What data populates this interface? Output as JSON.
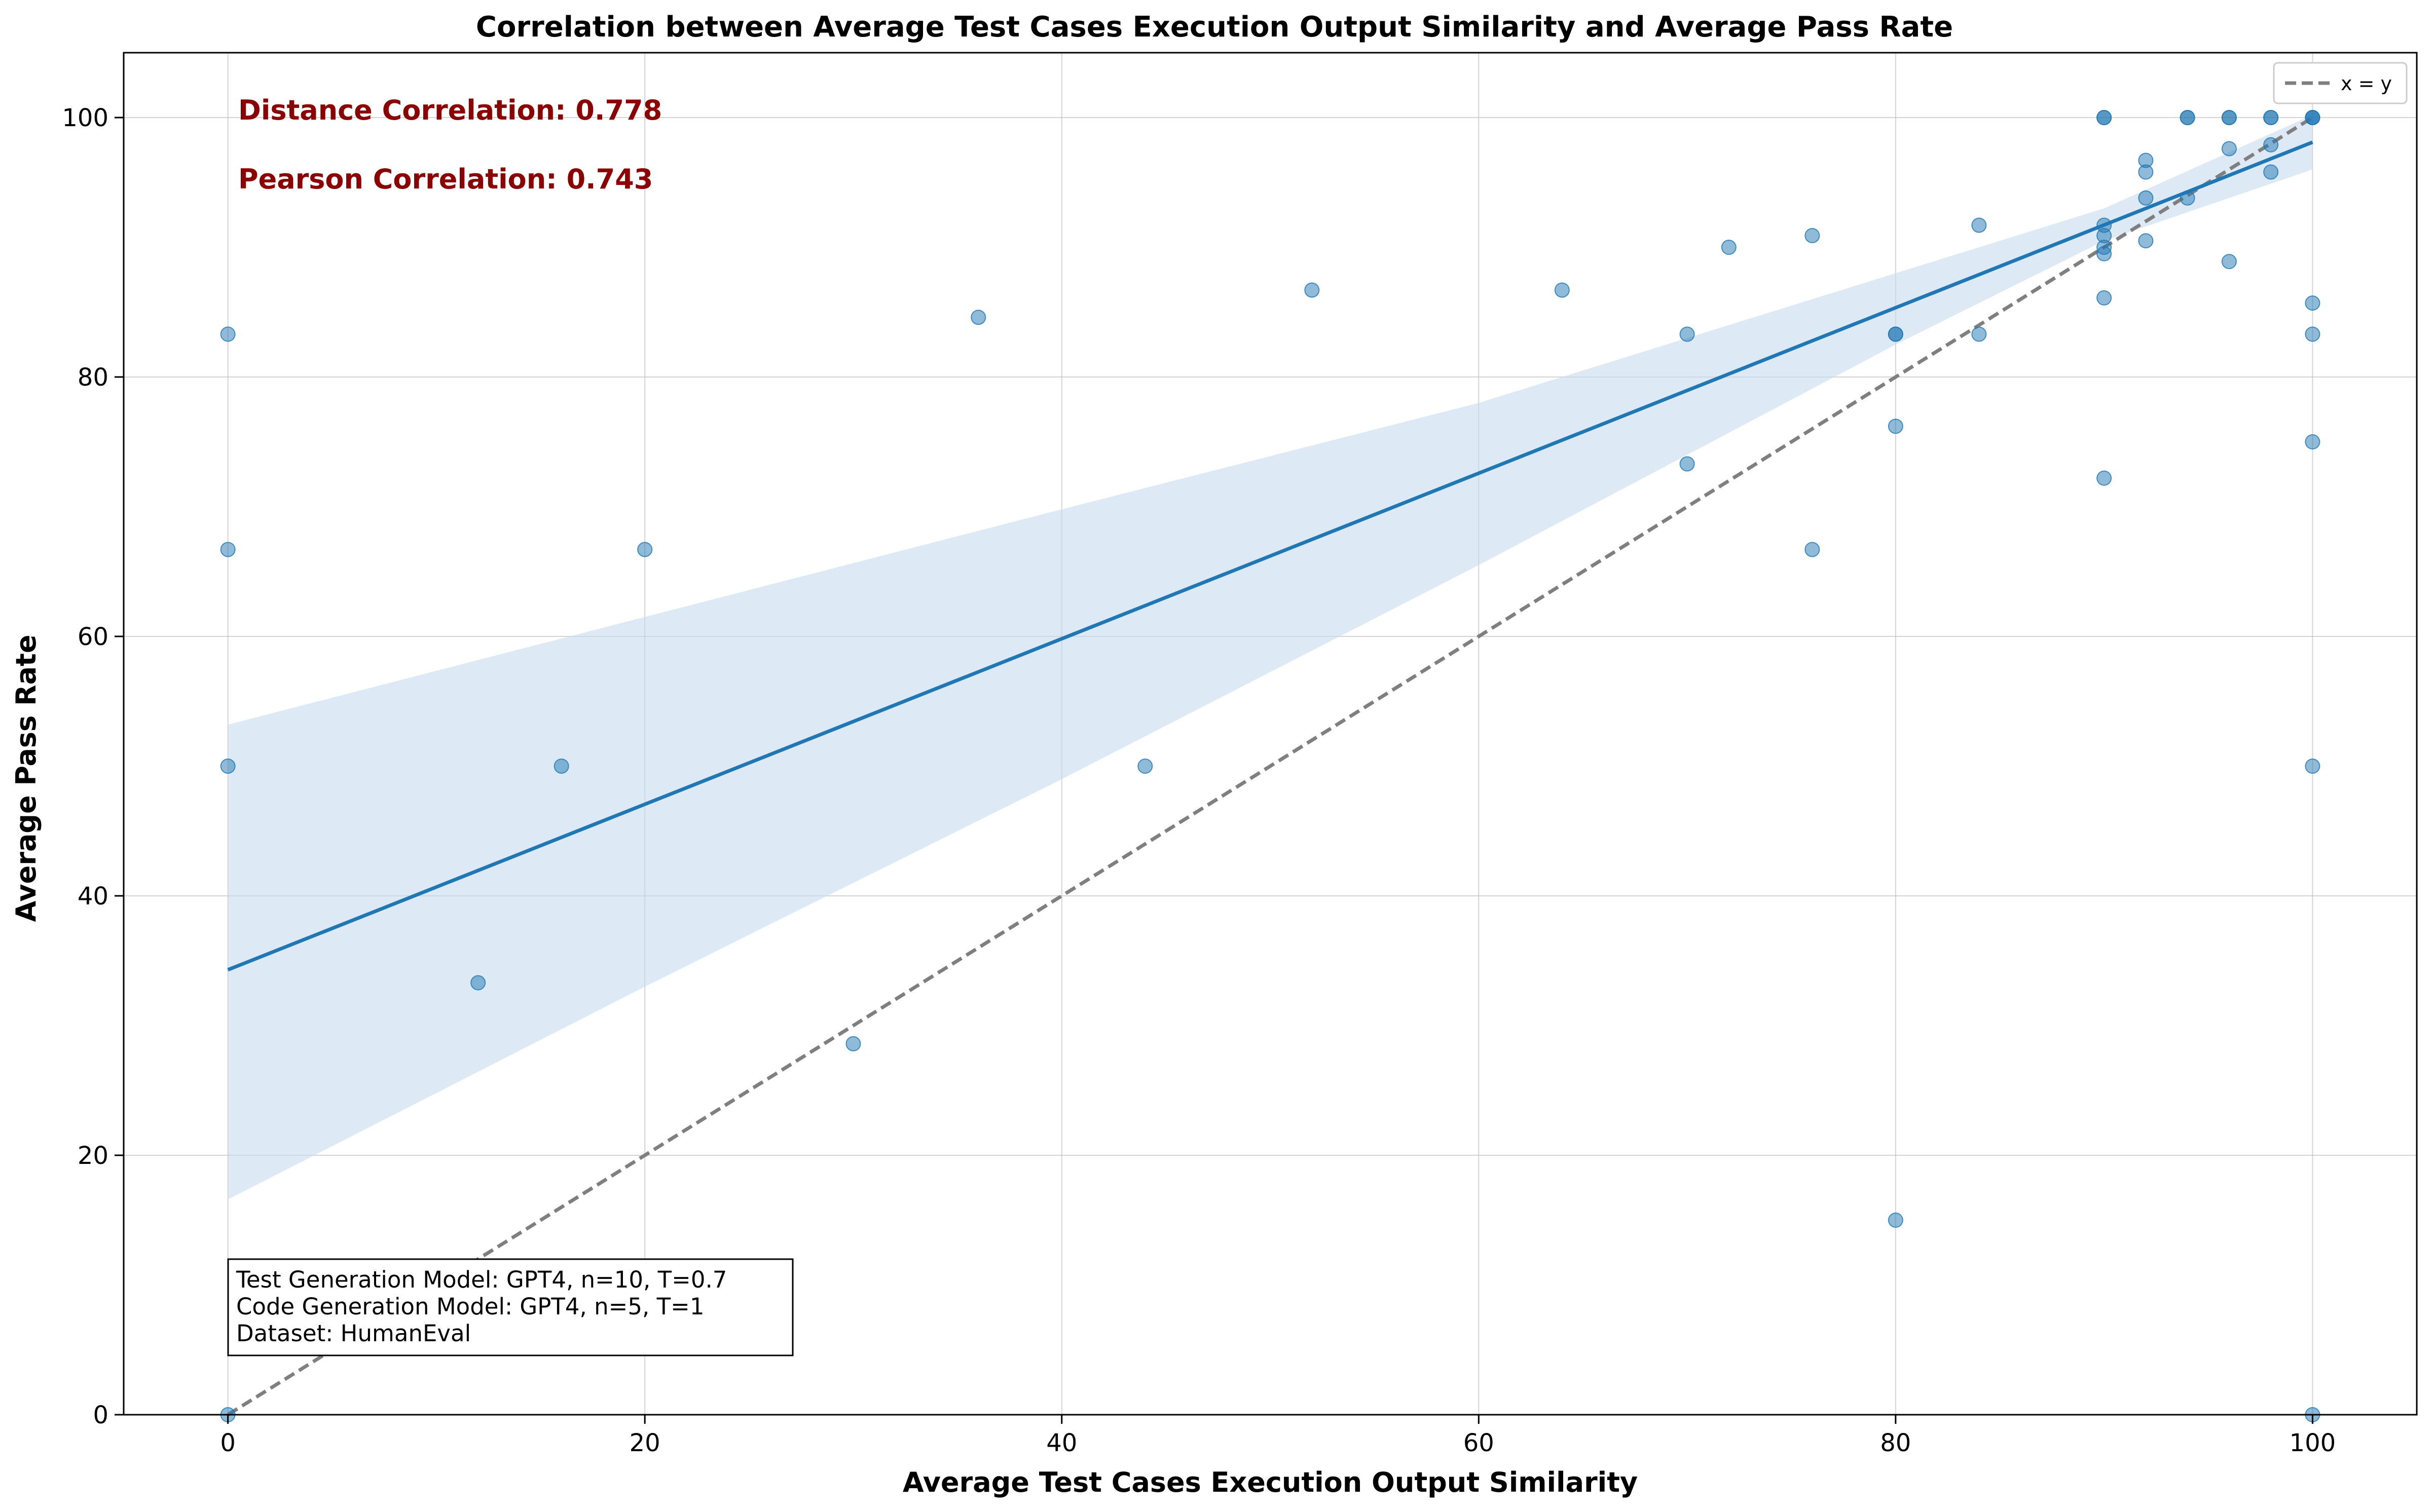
{
  "chart_data": {
    "type": "scatter",
    "title": "Correlation between Average Test Cases Execution Output Similarity and Average Pass Rate",
    "xlabel": "Average Test Cases Execution Output Similarity",
    "ylabel": "Average Pass Rate",
    "xlim": [
      -5,
      105
    ],
    "ylim": [
      0,
      105
    ],
    "xticks": [
      0,
      20,
      40,
      60,
      80,
      100
    ],
    "yticks": [
      0,
      20,
      40,
      60,
      80,
      100
    ],
    "grid": true,
    "legend": {
      "position": "top-right",
      "entries": [
        {
          "label": "x = y",
          "style": "dashed",
          "color": "#7f7f7f"
        }
      ]
    },
    "annotations": {
      "distance_correlation": "Distance Correlation: 0.778",
      "pearson_correlation": "Pearson Correlation: 0.743",
      "info_box": [
        "Test Generation Model: GPT4, n=10, T=0.7",
        "Code Generation Model: GPT4, n=5, T=1",
        "Dataset: HumanEval"
      ]
    },
    "regression": {
      "line": [
        [
          0,
          34.3
        ],
        [
          100,
          98.1
        ]
      ],
      "ci_upper": [
        [
          0,
          53.2
        ],
        [
          20,
          61.5
        ],
        [
          40,
          69.8
        ],
        [
          60,
          78.0
        ],
        [
          80,
          88.0
        ],
        [
          90,
          93.0
        ],
        [
          100,
          100.2
        ]
      ],
      "ci_lower": [
        [
          0,
          16.6
        ],
        [
          20,
          33.0
        ],
        [
          40,
          49.0
        ],
        [
          60,
          65.5
        ],
        [
          80,
          82.5
        ],
        [
          90,
          90.5
        ],
        [
          100,
          96.0
        ]
      ]
    },
    "colors": {
      "points": "#1f77b4",
      "line": "#1f77b4",
      "band": "#c6dbef",
      "identity": "#7f7f7f",
      "annotation": "#8b0000"
    },
    "points": [
      [
        0,
        83.3
      ],
      [
        0,
        66.7
      ],
      [
        0,
        50
      ],
      [
        0,
        0
      ],
      [
        12,
        33.3
      ],
      [
        16,
        50
      ],
      [
        20,
        66.7
      ],
      [
        30,
        28.6
      ],
      [
        36,
        84.6
      ],
      [
        44,
        50
      ],
      [
        52,
        86.7
      ],
      [
        64,
        86.7
      ],
      [
        70,
        83.3
      ],
      [
        70,
        73.3
      ],
      [
        72,
        90
      ],
      [
        76,
        90.9
      ],
      [
        76,
        66.7
      ],
      [
        80,
        83.3
      ],
      [
        80,
        83.3
      ],
      [
        80,
        76.2
      ],
      [
        80,
        15
      ],
      [
        84,
        91.7
      ],
      [
        84,
        83.3
      ],
      [
        90,
        100
      ],
      [
        90,
        100
      ],
      [
        90,
        91.7
      ],
      [
        90,
        90.9
      ],
      [
        90,
        90
      ],
      [
        90,
        89.5
      ],
      [
        90,
        86.1
      ],
      [
        90,
        72.2
      ],
      [
        92,
        96.7
      ],
      [
        92,
        95.8
      ],
      [
        92,
        93.8
      ],
      [
        92,
        90.5
      ],
      [
        94,
        100
      ],
      [
        94,
        100
      ],
      [
        94,
        93.8
      ],
      [
        96,
        100
      ],
      [
        96,
        100
      ],
      [
        96,
        97.6
      ],
      [
        96,
        88.9
      ],
      [
        98,
        100
      ],
      [
        98,
        100
      ],
      [
        98,
        97.9
      ],
      [
        98,
        95.8
      ],
      [
        100,
        100
      ],
      [
        100,
        100
      ],
      [
        100,
        100
      ],
      [
        100,
        85.7
      ],
      [
        100,
        83.3
      ],
      [
        100,
        75
      ],
      [
        100,
        50
      ],
      [
        100,
        0
      ]
    ]
  }
}
